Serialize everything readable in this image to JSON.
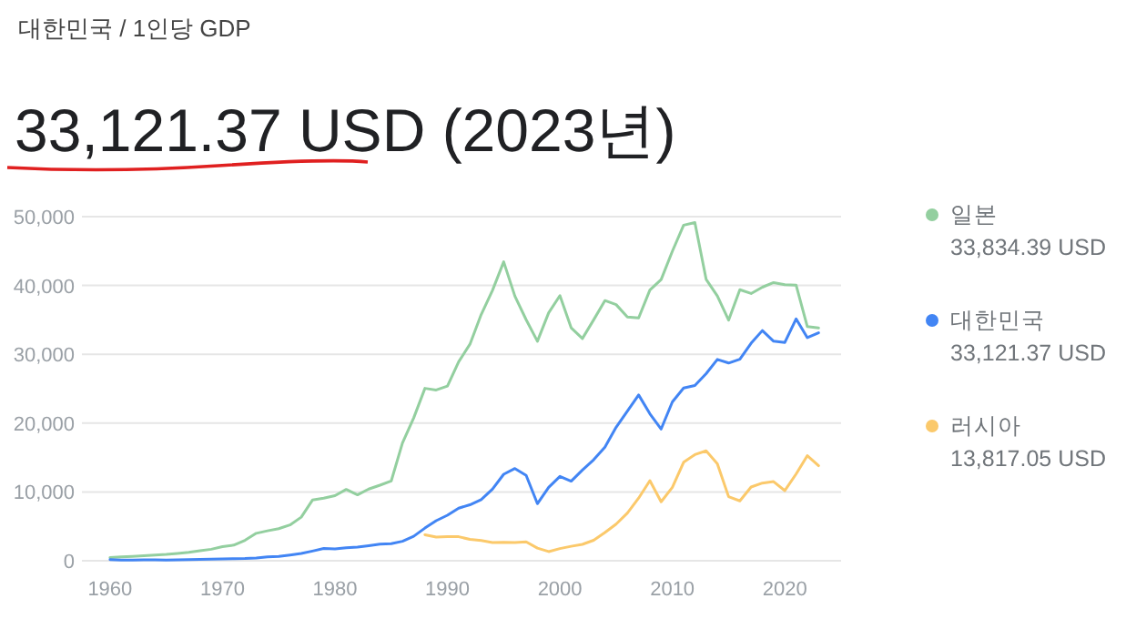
{
  "chart_data": {
    "type": "line",
    "title": "33,121.37 USD (2023년)",
    "subtitle": "대한민국 / 1인당 GDP",
    "xlim": [
      1957.5,
      2025
    ],
    "xticks": [
      1960,
      1970,
      1980,
      1990,
      2000,
      2010,
      2020
    ],
    "ylim": [
      0,
      50000
    ],
    "yticks": [
      {
        "value": 0,
        "label": "0"
      },
      {
        "value": 10000,
        "label": "10,000"
      },
      {
        "value": 20000,
        "label": "20,000"
      },
      {
        "value": 30000,
        "label": "30,000"
      },
      {
        "value": 40000,
        "label": "40,000"
      },
      {
        "value": 50000,
        "label": "50,000"
      }
    ],
    "grid": "y",
    "legend": "right",
    "series": [
      {
        "name": "일본",
        "color": "#93cf9f",
        "x": [
          1960,
          1961,
          1962,
          1963,
          1964,
          1965,
          1966,
          1967,
          1968,
          1969,
          1970,
          1971,
          1972,
          1973,
          1974,
          1975,
          1976,
          1977,
          1978,
          1979,
          1980,
          1981,
          1982,
          1983,
          1984,
          1985,
          1986,
          1987,
          1988,
          1989,
          1990,
          1991,
          1992,
          1993,
          1994,
          1995,
          1996,
          1997,
          1998,
          1999,
          2000,
          2001,
          2002,
          2003,
          2004,
          2005,
          2006,
          2007,
          2008,
          2009,
          2010,
          2011,
          2012,
          2013,
          2014,
          2015,
          2016,
          2017,
          2018,
          2019,
          2020,
          2021,
          2022,
          2023
        ],
        "values": [
          480,
          560,
          630,
          720,
          840,
          920,
          1060,
          1230,
          1450,
          1670,
          2040,
          2270,
          2970,
          3990,
          4350,
          4670,
          5200,
          6330,
          8820,
          9100,
          9460,
          10360,
          9580,
          10420,
          10980,
          11580,
          17110,
          20750,
          25050,
          24810,
          25370,
          28920,
          31460,
          35770,
          39270,
          43440,
          38440,
          35020,
          31900,
          36030,
          38530,
          33850,
          32290,
          35000,
          37810,
          37220,
          35430,
          35280,
          39340,
          40860,
          44970,
          48760,
          49150,
          40900,
          38480,
          34960,
          39380,
          38830,
          39750,
          40420,
          40110,
          40060,
          34020,
          33834.39
        ]
      },
      {
        "name": "대한민국",
        "color": "#4285f4",
        "x": [
          1960,
          1961,
          1962,
          1963,
          1964,
          1965,
          1966,
          1967,
          1968,
          1969,
          1970,
          1971,
          1972,
          1973,
          1974,
          1975,
          1976,
          1977,
          1978,
          1979,
          1980,
          1981,
          1982,
          1983,
          1984,
          1985,
          1986,
          1987,
          1988,
          1989,
          1990,
          1991,
          1992,
          1993,
          1994,
          1995,
          1996,
          1997,
          1998,
          1999,
          2000,
          2001,
          2002,
          2003,
          2004,
          2005,
          2006,
          2007,
          2008,
          2009,
          2010,
          2011,
          2012,
          2013,
          2014,
          2015,
          2016,
          2017,
          2018,
          2019,
          2020,
          2021,
          2022,
          2023
        ],
        "values": [
          158,
          94,
          106,
          146,
          124,
          108,
          133,
          161,
          199,
          243,
          279,
          301,
          324,
          406,
          563,
          617,
          834,
          1055,
          1406,
          1784,
          1715,
          1880,
          1990,
          2180,
          2400,
          2480,
          2830,
          3550,
          4750,
          5820,
          6610,
          7640,
          8130,
          8880,
          10390,
          12570,
          13400,
          12400,
          8290,
          10670,
          12260,
          11560,
          13170,
          14670,
          16500,
          19400,
          21740,
          24090,
          21350,
          19140,
          23080,
          25100,
          25460,
          27180,
          29250,
          28730,
          29290,
          31600,
          33450,
          31900,
          31720,
          35140,
          32420,
          33121.37
        ]
      },
      {
        "name": "러시아",
        "color": "#fbc96b",
        "x": [
          1988,
          1989,
          1990,
          1991,
          1992,
          1993,
          1994,
          1995,
          1996,
          1997,
          1998,
          1999,
          2000,
          2001,
          2002,
          2003,
          2004,
          2005,
          2006,
          2007,
          2008,
          2009,
          2010,
          2011,
          2012,
          2013,
          2014,
          2015,
          2016,
          2017,
          2018,
          2019,
          2020,
          2021,
          2022,
          2023
        ],
        "values": [
          3780,
          3430,
          3490,
          3490,
          3100,
          2930,
          2660,
          2670,
          2640,
          2740,
          1830,
          1330,
          1770,
          2100,
          2380,
          2980,
          4100,
          5320,
          6920,
          9100,
          11640,
          8560,
          10670,
          14310,
          15420,
          15970,
          14100,
          9310,
          8700,
          10720,
          11290,
          11500,
          10190,
          12600,
          15270,
          13817.05
        ]
      }
    ],
    "annotations": [
      "33,834.39 USD",
      "33,121.37 USD",
      "13,817.05 USD"
    ]
  }
}
